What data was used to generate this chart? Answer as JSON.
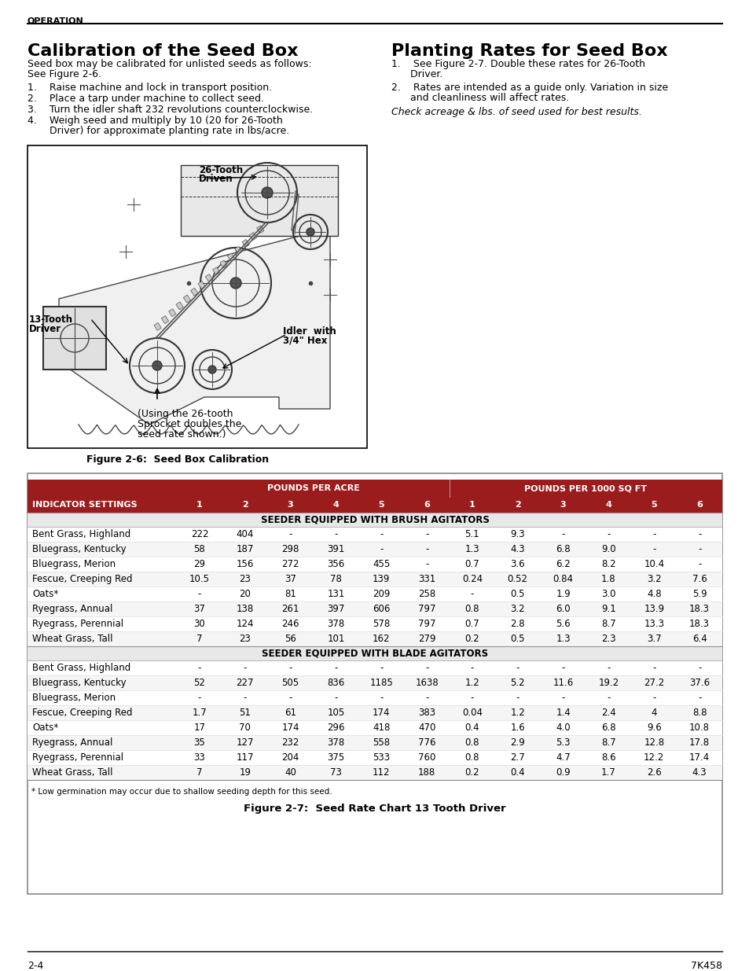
{
  "page_bg": "#ffffff",
  "header_section": "OPERATION",
  "title_left": "Calibration of the Seed Box",
  "title_right": "Planting Rates for Seed Box",
  "left_para": "Seed box may be calibrated for unlisted seeds as follows:\nSee Figure 2-6.",
  "left_items": [
    "1.    Raise machine and lock in transport position.",
    "2.    Place a tarp under machine to collect seed.",
    "3.    Turn the idler shaft 232 revolutions counterclockwise.",
    "4.    Weigh seed and multiply by 10 (20 for 26-Tooth\n       Driver) for approximate planting rate in lbs/acre."
  ],
  "right_item1_line1": "1.    See Figure 2-7. Double these rates for 26-Tooth",
  "right_item1_line2": "      Driver.",
  "right_item2_line1": "2.    Rates are intended as a guide only. Variation in size",
  "right_item2_line2": "      and cleanliness will affect rates.",
  "right_italic": "Check acreage & lbs. of seed used for best results.",
  "fig6_caption": "Figure 2-6:  Seed Box Calibration",
  "fig6_sub1": "(Using the 26-tooth",
  "fig6_sub2": "Sprocket doubles the",
  "fig6_sub3": "seed rate shown.)",
  "label_26tooth": "26-Tooth",
  "label_driven": "Driven",
  "label_13tooth": "13-Tooth",
  "label_driver": "Driver",
  "label_idler1": "Idler  with",
  "label_idler2": "3/4\" Hex",
  "fig7_caption": "Figure 2-7:  Seed Rate Chart 13 Tooth Driver",
  "brush_label": "SEEDER EQUIPPED WITH BRUSH AGITATORS",
  "blade_label": "SEEDER EQUIPPED WITH BLADE AGITATORS",
  "header_bg": "#9b1c1c",
  "section_bg": "#e8e8e8",
  "row_odd": "#f5f5f5",
  "row_even": "#ffffff",
  "brush_rows": [
    [
      "Bent Grass, Highland",
      "222",
      "404",
      "-",
      "-",
      "-",
      "-",
      "5.1",
      "9.3",
      "-",
      "-",
      "-",
      "-"
    ],
    [
      "Bluegrass, Kentucky",
      "58",
      "187",
      "298",
      "391",
      "-",
      "-",
      "1.3",
      "4.3",
      "6.8",
      "9.0",
      "-",
      "-"
    ],
    [
      "Bluegrass, Merion",
      "29",
      "156",
      "272",
      "356",
      "455",
      "-",
      "0.7",
      "3.6",
      "6.2",
      "8.2",
      "10.4",
      "-"
    ],
    [
      "Fescue, Creeping Red",
      "10.5",
      "23",
      "37",
      "78",
      "139",
      "331",
      "0.24",
      "0.52",
      "0.84",
      "1.8",
      "3.2",
      "7.6"
    ],
    [
      "Oats*",
      "-",
      "20",
      "81",
      "131",
      "209",
      "258",
      "-",
      "0.5",
      "1.9",
      "3.0",
      "4.8",
      "5.9"
    ],
    [
      "Ryegrass, Annual",
      "37",
      "138",
      "261",
      "397",
      "606",
      "797",
      "0.8",
      "3.2",
      "6.0",
      "9.1",
      "13.9",
      "18.3"
    ],
    [
      "Ryegrass, Perennial",
      "30",
      "124",
      "246",
      "378",
      "578",
      "797",
      "0.7",
      "2.8",
      "5.6",
      "8.7",
      "13.3",
      "18.3"
    ],
    [
      "Wheat Grass, Tall",
      "7",
      "23",
      "56",
      "101",
      "162",
      "279",
      "0.2",
      "0.5",
      "1.3",
      "2.3",
      "3.7",
      "6.4"
    ]
  ],
  "blade_rows": [
    [
      "Bent Grass, Highland",
      "-",
      "-",
      "-",
      "-",
      "-",
      "-",
      "-",
      "-",
      "-",
      "-",
      "-",
      "-"
    ],
    [
      "Bluegrass, Kentucky",
      "52",
      "227",
      "505",
      "836",
      "1185",
      "1638",
      "1.2",
      "5.2",
      "11.6",
      "19.2",
      "27.2",
      "37.6"
    ],
    [
      "Bluegrass, Merion",
      "-",
      "-",
      "-",
      "-",
      "-",
      "-",
      "-",
      "-",
      "-",
      "-",
      "-",
      "-"
    ],
    [
      "Fescue, Creeping Red",
      "1.7",
      "51",
      "61",
      "105",
      "174",
      "383",
      "0.04",
      "1.2",
      "1.4",
      "2.4",
      "4",
      "8.8"
    ],
    [
      "Oats*",
      "17",
      "70",
      "174",
      "296",
      "418",
      "470",
      "0.4",
      "1.6",
      "4.0",
      "6.8",
      "9.6",
      "10.8"
    ],
    [
      "Ryegrass, Annual",
      "35",
      "127",
      "232",
      "378",
      "558",
      "776",
      "0.8",
      "2.9",
      "5.3",
      "8.7",
      "12.8",
      "17.8"
    ],
    [
      "Ryegrass, Perennial",
      "33",
      "117",
      "204",
      "375",
      "533",
      "760",
      "0.8",
      "2.7",
      "4.7",
      "8.6",
      "12.2",
      "17.4"
    ],
    [
      "Wheat Grass, Tall",
      "7",
      "19",
      "40",
      "73",
      "112",
      "188",
      "0.2",
      "0.4",
      "0.9",
      "1.7",
      "2.6",
      "4.3"
    ]
  ],
  "footnote": "* Low germination may occur due to shallow seeding depth for this seed.",
  "footer_left": "2-4",
  "footer_right": "7K458"
}
